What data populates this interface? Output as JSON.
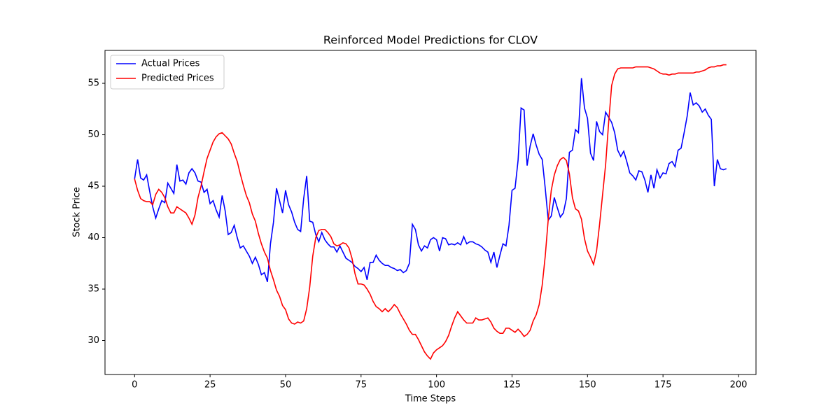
{
  "chart_data": {
    "type": "line",
    "title": "Reinforced Model Predictions for CLOV",
    "x_label": "Time Steps",
    "y_label": "Stock Price",
    "legend": "upper left",
    "xlim": [
      -9.8,
      205.8
    ],
    "ylim": [
      26.7,
      58.2
    ],
    "xticks": [
      0,
      25,
      50,
      75,
      100,
      125,
      150,
      175,
      200
    ],
    "yticks": [
      30,
      35,
      40,
      45,
      50,
      55
    ],
    "x": [
      0,
      1,
      2,
      3,
      4,
      5,
      6,
      7,
      8,
      9,
      10,
      11,
      12,
      13,
      14,
      15,
      16,
      17,
      18,
      19,
      20,
      21,
      22,
      23,
      24,
      25,
      26,
      27,
      28,
      29,
      30,
      31,
      32,
      33,
      34,
      35,
      36,
      37,
      38,
      39,
      40,
      41,
      42,
      43,
      44,
      45,
      46,
      47,
      48,
      49,
      50,
      51,
      52,
      53,
      54,
      55,
      56,
      57,
      58,
      59,
      60,
      61,
      62,
      63,
      64,
      65,
      66,
      67,
      68,
      69,
      70,
      71,
      72,
      73,
      74,
      75,
      76,
      77,
      78,
      79,
      80,
      81,
      82,
      83,
      84,
      85,
      86,
      87,
      88,
      89,
      90,
      91,
      92,
      93,
      94,
      95,
      96,
      97,
      98,
      99,
      100,
      101,
      102,
      103,
      104,
      105,
      106,
      107,
      108,
      109,
      110,
      111,
      112,
      113,
      114,
      115,
      116,
      117,
      118,
      119,
      120,
      121,
      122,
      123,
      124,
      125,
      126,
      127,
      128,
      129,
      130,
      131,
      132,
      133,
      134,
      135,
      136,
      137,
      138,
      139,
      140,
      141,
      142,
      143,
      144,
      145,
      146,
      147,
      148,
      149,
      150,
      151,
      152,
      153,
      154,
      155,
      156,
      157,
      158,
      159,
      160,
      161,
      162,
      163,
      164,
      165,
      166,
      167,
      168,
      169,
      170,
      171,
      172,
      173,
      174,
      175,
      176,
      177,
      178,
      179,
      180,
      181,
      182,
      183,
      184,
      185,
      186,
      187,
      188,
      189,
      190,
      191,
      192,
      193,
      194,
      195,
      196
    ],
    "series": [
      {
        "name": "Actual Prices",
        "color": "#0000ff",
        "values": [
          45.7,
          47.6,
          45.8,
          45.6,
          46.1,
          44.5,
          43.0,
          41.9,
          42.8,
          43.6,
          43.4,
          45.3,
          44.8,
          44.3,
          47.1,
          45.5,
          45.6,
          45.2,
          46.3,
          46.7,
          46.3,
          45.5,
          45.4,
          44.4,
          44.7,
          43.3,
          43.6,
          42.7,
          42.0,
          44.1,
          42.6,
          40.3,
          40.5,
          41.2,
          40.0,
          39.0,
          39.2,
          38.7,
          38.2,
          37.5,
          38.1,
          37.4,
          36.4,
          36.6,
          35.7,
          39.4,
          41.5,
          44.8,
          43.6,
          42.4,
          44.6,
          43.2,
          42.5,
          41.5,
          40.8,
          40.6,
          43.8,
          46.0,
          41.6,
          41.5,
          40.3,
          39.6,
          40.5,
          39.8,
          39.4,
          39.1,
          39.1,
          38.6,
          39.2,
          38.6,
          38.0,
          37.8,
          37.6,
          37.2,
          37.0,
          36.7,
          37.1,
          35.9,
          37.6,
          37.6,
          38.3,
          37.8,
          37.5,
          37.3,
          37.3,
          37.1,
          37.0,
          36.8,
          36.9,
          36.6,
          36.8,
          37.5,
          41.3,
          40.8,
          39.3,
          38.7,
          39.2,
          39.0,
          39.8,
          40.0,
          39.8,
          38.7,
          40.0,
          39.9,
          39.3,
          39.4,
          39.3,
          39.5,
          39.3,
          40.1,
          39.4,
          39.6,
          39.6,
          39.4,
          39.3,
          39.1,
          38.8,
          38.6,
          37.6,
          38.6,
          37.1,
          38.3,
          39.4,
          39.2,
          41.2,
          44.6,
          44.8,
          47.5,
          52.6,
          52.4,
          47.0,
          48.9,
          50.1,
          49.0,
          48.1,
          47.6,
          44.8,
          41.7,
          42.1,
          43.9,
          42.9,
          42.0,
          42.4,
          43.8,
          48.3,
          48.5,
          50.5,
          50.2,
          55.5,
          52.6,
          51.6,
          48.2,
          47.5,
          51.3,
          50.3,
          50.0,
          52.2,
          51.7,
          51.2,
          50.2,
          48.5,
          47.9,
          48.4,
          47.4,
          46.3,
          46.0,
          45.6,
          46.5,
          46.4,
          45.6,
          44.4,
          46.1,
          44.8,
          46.6,
          45.8,
          46.3,
          46.2,
          47.2,
          47.4,
          46.9,
          48.5,
          48.7,
          50.2,
          51.8,
          54.1,
          52.9,
          53.1,
          52.8,
          52.2,
          52.5,
          51.9,
          51.5,
          45.0,
          47.6,
          46.7,
          46.6,
          46.7
        ]
      },
      {
        "name": "Predicted Prices",
        "color": "#ff0000",
        "values": [
          45.7,
          44.6,
          43.8,
          43.6,
          43.5,
          43.5,
          43.2,
          44.2,
          44.7,
          44.4,
          43.9,
          43.0,
          42.4,
          42.4,
          43.0,
          42.8,
          42.6,
          42.4,
          41.9,
          41.3,
          42.2,
          43.9,
          45.0,
          46.4,
          47.7,
          48.5,
          49.3,
          49.8,
          50.1,
          50.2,
          49.9,
          49.6,
          49.1,
          48.2,
          47.4,
          46.2,
          45.1,
          44.1,
          43.4,
          42.3,
          41.6,
          40.4,
          39.4,
          38.6,
          38.0,
          36.8,
          35.9,
          34.9,
          34.3,
          33.4,
          33.0,
          32.1,
          31.7,
          31.6,
          31.8,
          31.7,
          31.9,
          33.1,
          35.2,
          38.2,
          40.0,
          40.7,
          40.8,
          40.8,
          40.5,
          40.1,
          39.4,
          39.2,
          39.3,
          39.5,
          39.4,
          39.0,
          38.0,
          36.5,
          35.5,
          35.5,
          35.4,
          35.0,
          34.5,
          33.8,
          33.3,
          33.1,
          32.8,
          33.1,
          32.8,
          33.1,
          33.5,
          33.2,
          32.6,
          32.1,
          31.6,
          31.0,
          30.6,
          30.6,
          30.1,
          29.5,
          28.9,
          28.5,
          28.2,
          28.8,
          29.1,
          29.3,
          29.5,
          29.9,
          30.5,
          31.4,
          32.2,
          32.8,
          32.4,
          32.0,
          31.7,
          31.7,
          31.7,
          32.2,
          32.0,
          32.0,
          32.1,
          32.2,
          31.8,
          31.2,
          30.9,
          30.7,
          30.7,
          31.2,
          31.2,
          31.0,
          30.8,
          31.1,
          30.8,
          30.4,
          30.6,
          31.0,
          31.9,
          32.5,
          33.5,
          35.4,
          38.2,
          41.8,
          44.6,
          46.1,
          47.0,
          47.6,
          47.8,
          47.5,
          46.2,
          43.9,
          42.8,
          42.6,
          41.8,
          39.9,
          38.7,
          38.1,
          37.4,
          38.7,
          41.3,
          44.2,
          47.1,
          51.2,
          54.8,
          55.9,
          56.4,
          56.5,
          56.5,
          56.5,
          56.5,
          56.5,
          56.6,
          56.6,
          56.6,
          56.6,
          56.6,
          56.5,
          56.4,
          56.2,
          56.0,
          55.9,
          55.9,
          55.8,
          55.9,
          55.9,
          56.0,
          56.0,
          56.0,
          56.0,
          56.0,
          56.0,
          56.1,
          56.1,
          56.2,
          56.3,
          56.5,
          56.6,
          56.6,
          56.7,
          56.7,
          56.8,
          56.8
        ]
      }
    ]
  }
}
